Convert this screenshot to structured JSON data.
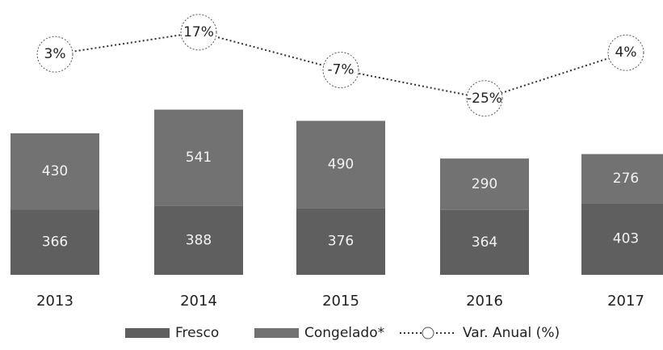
{
  "chart_data": {
    "type": "stacked_bar_line",
    "categories": [
      "2013",
      "2014",
      "2015",
      "2016",
      "2017"
    ],
    "series": [
      {
        "name": "Fresco",
        "color": "#5f5f5f",
        "values": [
          366,
          388,
          376,
          364,
          403
        ]
      },
      {
        "name": "Congelado*",
        "color": "#727272",
        "values": [
          430,
          541,
          490,
          290,
          276
        ]
      },
      {
        "name": "Var. Anual (%)",
        "color": "#333333",
        "axis": "y2",
        "values": [
          3,
          17,
          -7,
          -25,
          4
        ],
        "value_labels": [
          "3%",
          "17%",
          "-7%",
          "-25%",
          "4%"
        ]
      }
    ],
    "ylim": [
      0,
      1000
    ],
    "y2lim": [
      -40,
      30
    ],
    "legend": "bottom"
  }
}
